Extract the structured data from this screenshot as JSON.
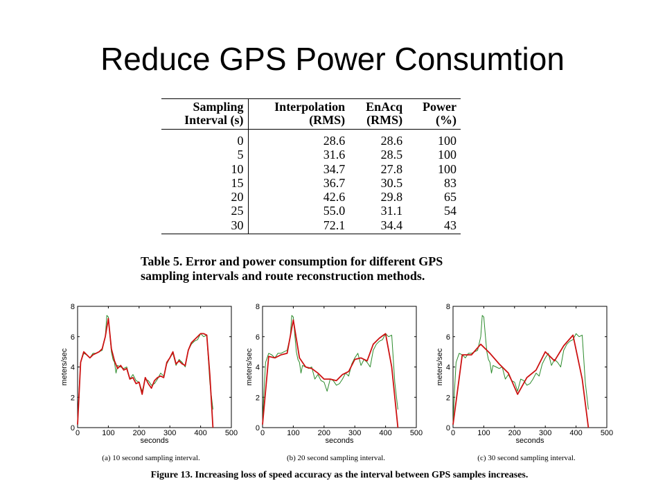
{
  "slide": {
    "title": "Reduce GPS Power Consumtion"
  },
  "table": {
    "headers": [
      [
        "Sampling",
        "Interval (s)"
      ],
      [
        "Interpolation",
        "(RMS)"
      ],
      [
        "EnAcq",
        "(RMS)"
      ],
      [
        "Power",
        "(%)"
      ]
    ],
    "rows": [
      [
        "0",
        "28.6",
        "28.6",
        "100"
      ],
      [
        "5",
        "31.6",
        "28.5",
        "100"
      ],
      [
        "10",
        "34.7",
        "27.8",
        "100"
      ],
      [
        "15",
        "36.7",
        "30.5",
        "83"
      ],
      [
        "20",
        "42.6",
        "29.8",
        "65"
      ],
      [
        "25",
        "55.0",
        "31.1",
        "54"
      ],
      [
        "30",
        "72.1",
        "34.4",
        "43"
      ]
    ],
    "caption_line1": "Table 5. Error and power consumption for different GPS",
    "caption_line2": "sampling intervals and route reconstruction methods."
  },
  "figure_caption": "Figure 13. Increasing loss of speed accuracy as the interval between GPS samples increases.",
  "chart_data": [
    {
      "type": "line",
      "caption": "(a) 10 second sampling interval.",
      "xlabel": "seconds",
      "ylabel": "meters/sec",
      "xlim": [
        0,
        500
      ],
      "ylim": [
        0,
        8
      ],
      "xticks": [
        0,
        100,
        200,
        300,
        400,
        500
      ],
      "yticks": [
        0,
        2,
        4,
        6,
        8
      ],
      "series": [
        {
          "color": "#2a8a2a",
          "x": [
            0,
            5,
            10,
            20,
            30,
            40,
            50,
            60,
            70,
            80,
            90,
            95,
            100,
            105,
            110,
            115,
            120,
            125,
            130,
            140,
            150,
            160,
            170,
            180,
            190,
            200,
            210,
            220,
            230,
            240,
            250,
            260,
            270,
            280,
            290,
            300,
            310,
            320,
            330,
            340,
            350,
            360,
            370,
            380,
            390,
            400,
            410,
            420,
            430,
            440
          ],
          "y": [
            0.3,
            2.5,
            4.3,
            4.9,
            4.8,
            4.6,
            4.9,
            4.9,
            5.0,
            5.1,
            6.0,
            7.4,
            7.3,
            6.1,
            5.0,
            4.5,
            4.3,
            3.6,
            4.1,
            4.0,
            3.9,
            4.0,
            3.2,
            3.5,
            3.1,
            3.0,
            2.4,
            3.2,
            3.1,
            2.8,
            2.9,
            3.2,
            3.6,
            3.4,
            4.2,
            4.6,
            4.9,
            4.1,
            4.5,
            4.3,
            4.0,
            5.1,
            5.5,
            5.7,
            5.8,
            6.2,
            6.0,
            6.1,
            3.0,
            1.2
          ]
        },
        {
          "color": "#cc1111",
          "x": [
            0,
            10,
            20,
            30,
            40,
            50,
            60,
            70,
            80,
            90,
            100,
            110,
            120,
            130,
            140,
            150,
            160,
            170,
            180,
            190,
            200,
            210,
            220,
            230,
            240,
            250,
            260,
            270,
            280,
            290,
            300,
            310,
            320,
            330,
            340,
            350,
            360,
            370,
            380,
            390,
            400,
            410,
            420,
            430,
            440
          ],
          "y": [
            0.2,
            4.3,
            5.0,
            4.8,
            4.6,
            4.8,
            4.9,
            5.0,
            5.2,
            6.0,
            7.2,
            5.2,
            4.4,
            3.9,
            4.1,
            3.8,
            3.9,
            3.2,
            3.3,
            2.9,
            3.0,
            2.2,
            3.3,
            2.9,
            2.6,
            3.1,
            3.3,
            3.4,
            3.3,
            4.3,
            4.6,
            5.0,
            4.2,
            4.4,
            4.2,
            4.1,
            5.1,
            5.6,
            5.8,
            6.0,
            6.2,
            6.2,
            6.1,
            3.5,
            0.0
          ]
        }
      ]
    },
    {
      "type": "line",
      "caption": "(b) 20 second sampling interval.",
      "xlabel": "seconds",
      "ylabel": "meters/sec",
      "xlim": [
        0,
        500
      ],
      "ylim": [
        0,
        8
      ],
      "xticks": [
        0,
        100,
        200,
        300,
        400,
        500
      ],
      "yticks": [
        0,
        2,
        4,
        6,
        8
      ],
      "series": [
        {
          "color": "#2a8a2a",
          "x": [
            0,
            5,
            10,
            20,
            30,
            40,
            50,
            60,
            70,
            80,
            90,
            95,
            100,
            105,
            110,
            115,
            120,
            125,
            130,
            140,
            150,
            160,
            170,
            180,
            190,
            200,
            210,
            220,
            230,
            240,
            250,
            260,
            270,
            280,
            290,
            300,
            310,
            320,
            330,
            340,
            350,
            360,
            370,
            380,
            390,
            400,
            410,
            420,
            430,
            440
          ],
          "y": [
            0.3,
            2.5,
            4.3,
            4.9,
            4.8,
            4.6,
            4.9,
            4.9,
            5.0,
            5.1,
            6.0,
            7.4,
            7.3,
            6.1,
            5.0,
            4.5,
            4.3,
            3.6,
            4.1,
            4.0,
            3.9,
            4.0,
            3.2,
            3.5,
            3.1,
            3.0,
            2.4,
            3.2,
            3.1,
            2.8,
            2.9,
            3.2,
            3.6,
            3.4,
            4.2,
            4.6,
            4.9,
            4.1,
            4.5,
            4.3,
            4.0,
            5.1,
            5.5,
            5.7,
            5.8,
            6.2,
            6.0,
            6.1,
            3.0,
            1.2
          ]
        },
        {
          "color": "#cc1111",
          "x": [
            0,
            20,
            40,
            60,
            80,
            100,
            120,
            140,
            160,
            180,
            200,
            220,
            240,
            260,
            280,
            300,
            320,
            340,
            360,
            380,
            400,
            420,
            440
          ],
          "y": [
            0.2,
            4.7,
            4.6,
            4.8,
            4.9,
            7.1,
            4.6,
            4.0,
            3.9,
            3.6,
            3.2,
            3.2,
            3.1,
            3.5,
            3.7,
            4.5,
            4.6,
            4.4,
            5.5,
            5.9,
            6.2,
            4.0,
            0.0
          ]
        }
      ]
    },
    {
      "type": "line",
      "caption": "(c) 30 second sampling interval.",
      "xlabel": "seconds",
      "ylabel": "meters/sec",
      "xlim": [
        0,
        500
      ],
      "ylim": [
        0,
        8
      ],
      "xticks": [
        0,
        100,
        200,
        300,
        400,
        500
      ],
      "yticks": [
        0,
        2,
        4,
        6,
        8
      ],
      "series": [
        {
          "color": "#2a8a2a",
          "x": [
            0,
            5,
            10,
            20,
            30,
            40,
            50,
            60,
            70,
            80,
            90,
            95,
            100,
            105,
            110,
            115,
            120,
            125,
            130,
            140,
            150,
            160,
            170,
            180,
            190,
            200,
            210,
            220,
            230,
            240,
            250,
            260,
            270,
            280,
            290,
            300,
            310,
            320,
            330,
            340,
            350,
            360,
            370,
            380,
            390,
            400,
            410,
            420,
            430,
            440
          ],
          "y": [
            0.3,
            2.5,
            4.3,
            4.9,
            4.8,
            4.6,
            4.9,
            4.9,
            5.0,
            5.1,
            6.0,
            7.4,
            7.3,
            6.1,
            5.0,
            4.5,
            4.3,
            3.6,
            4.1,
            4.0,
            3.9,
            4.0,
            3.2,
            3.5,
            3.1,
            3.0,
            2.4,
            3.2,
            3.1,
            2.8,
            2.9,
            3.2,
            3.6,
            3.4,
            4.2,
            4.6,
            4.9,
            4.1,
            4.5,
            4.3,
            4.0,
            5.1,
            5.5,
            5.7,
            5.8,
            6.2,
            6.0,
            6.1,
            3.0,
            1.2
          ]
        },
        {
          "color": "#cc1111",
          "x": [
            0,
            30,
            60,
            90,
            120,
            150,
            180,
            210,
            240,
            270,
            300,
            330,
            360,
            390,
            420,
            440
          ],
          "y": [
            0.2,
            4.8,
            4.8,
            5.5,
            4.9,
            4.2,
            3.6,
            2.2,
            3.3,
            3.8,
            5.0,
            4.4,
            5.4,
            6.1,
            3.2,
            0.0
          ]
        }
      ]
    }
  ]
}
